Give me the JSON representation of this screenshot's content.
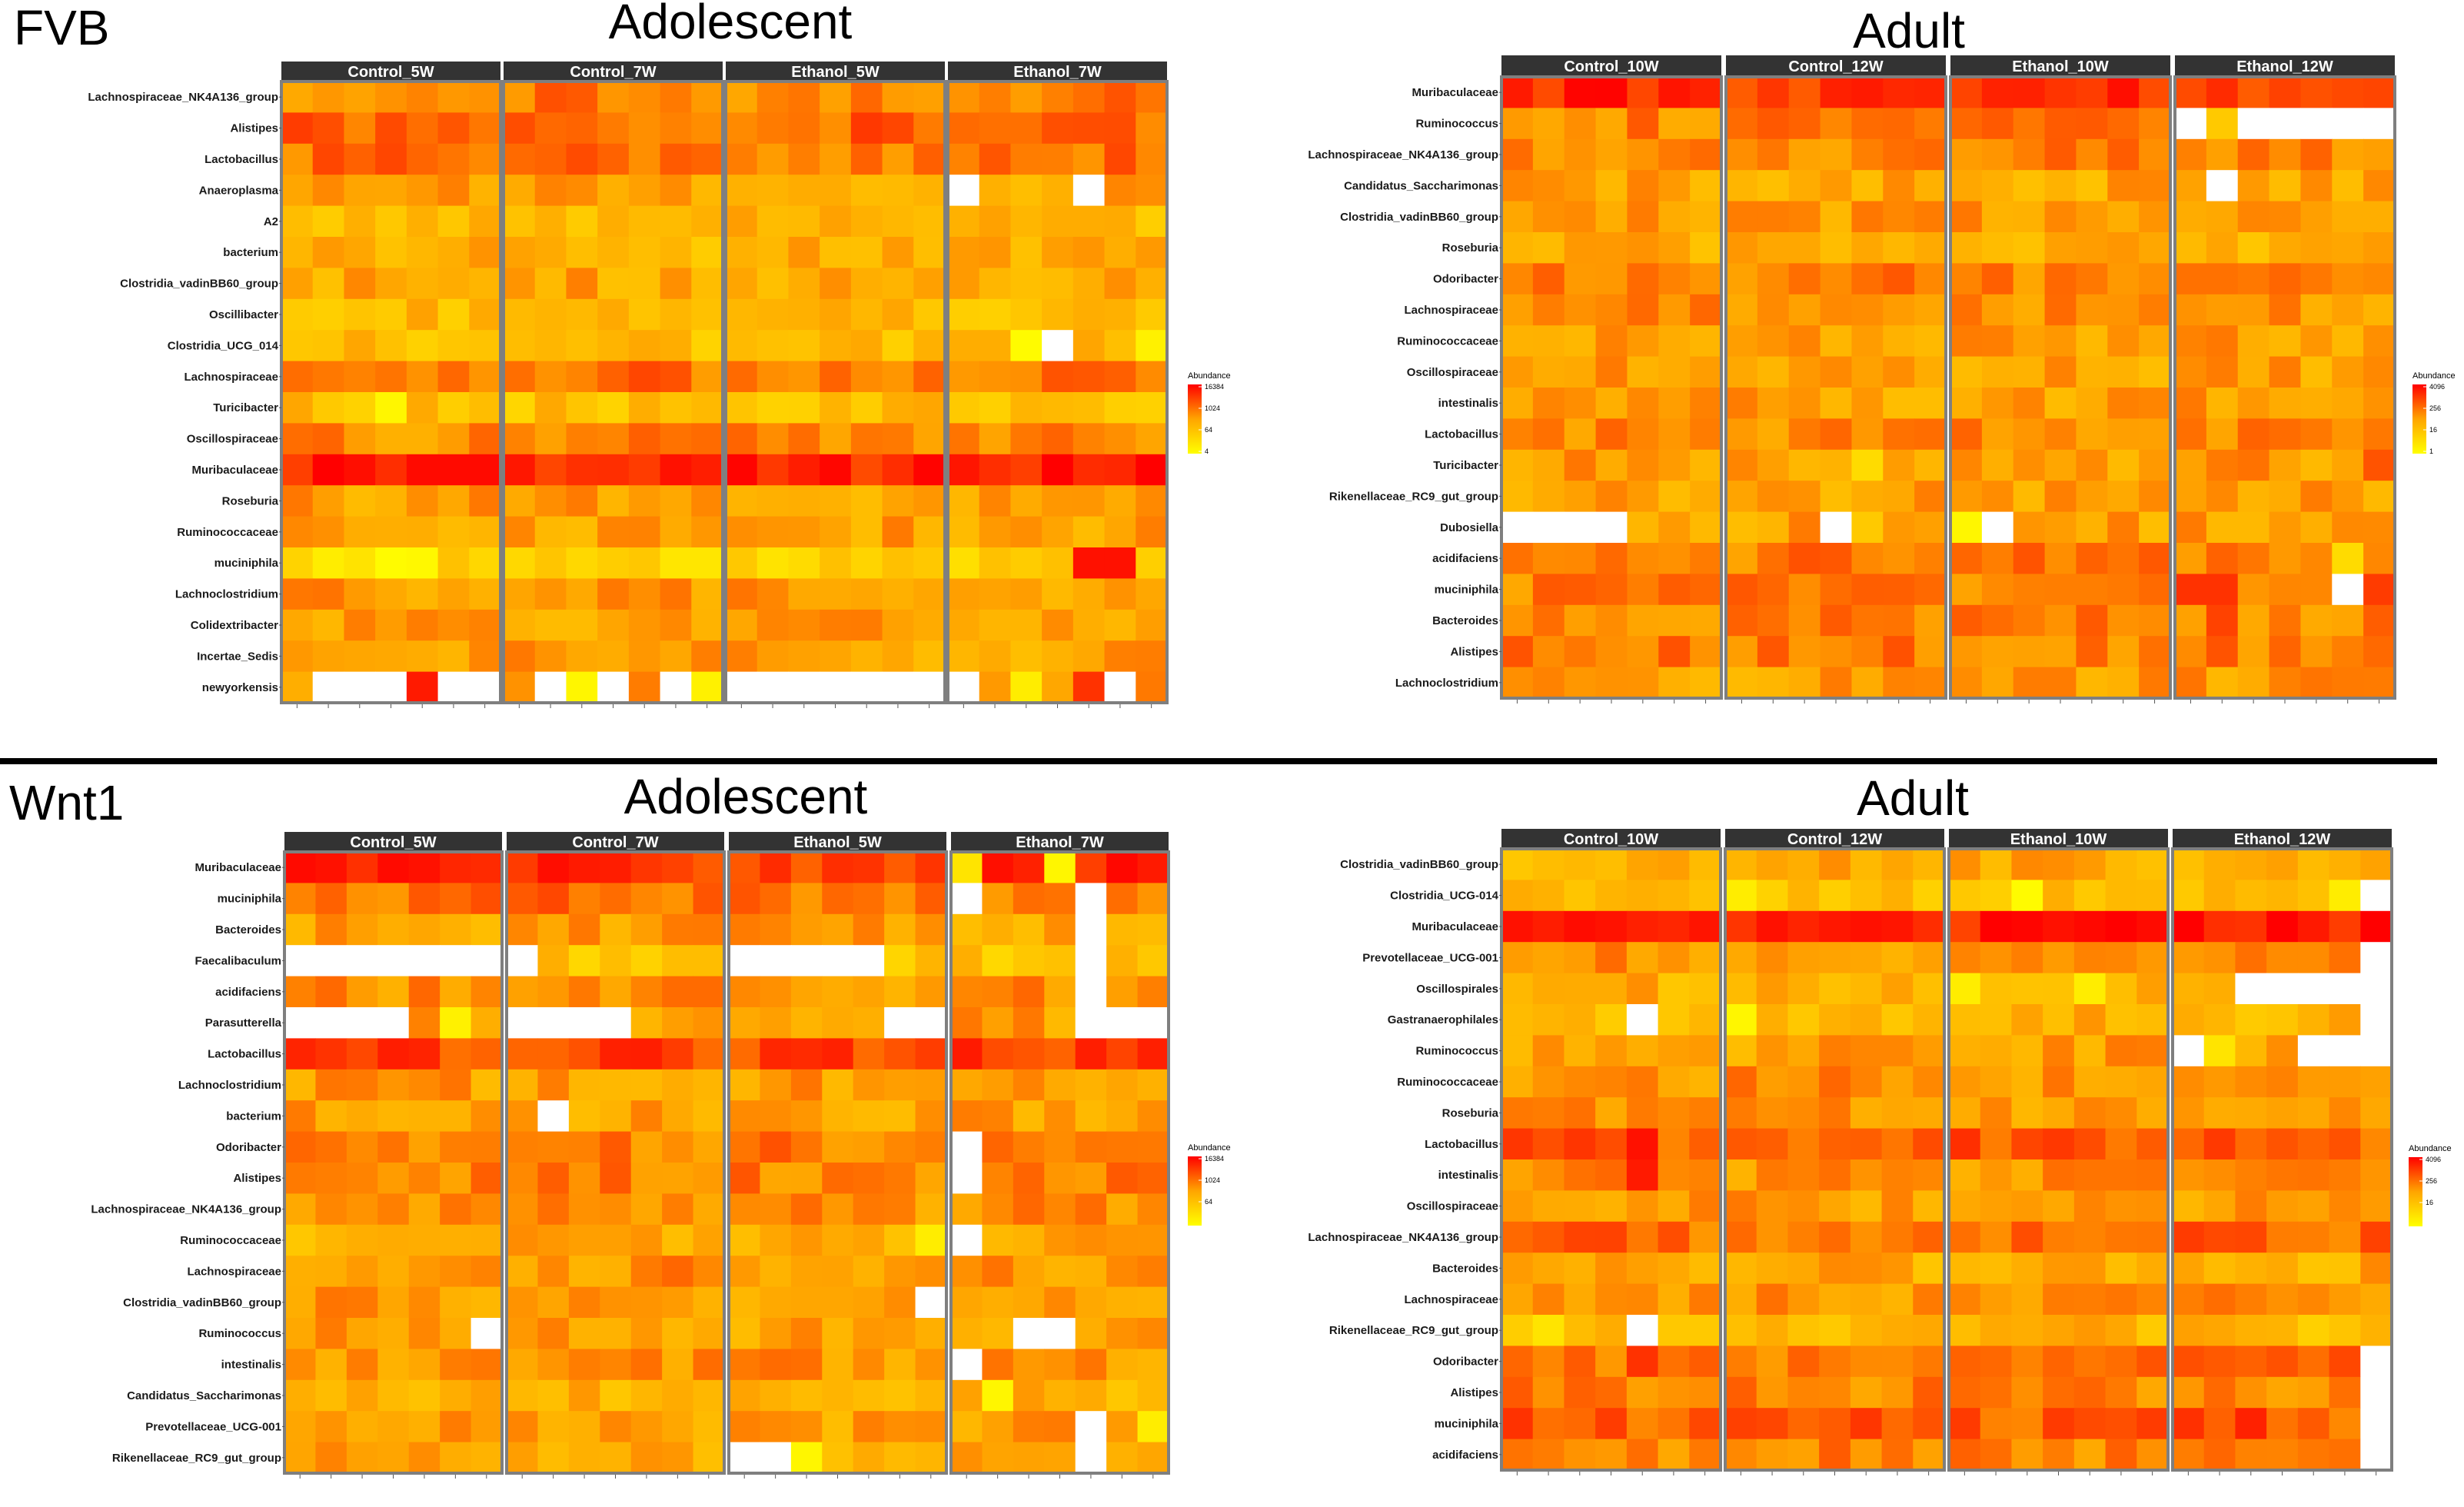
{
  "colors": {
    "low": "#ffff00",
    "mid": "#ffa500",
    "high": "#ff0000",
    "missing": "#ffffff",
    "strip": "#333333",
    "panel_border": "#7f7f7f",
    "divider": "#000000"
  },
  "chart_data": [
    {
      "type": "heatmap",
      "strain": "FVB",
      "age_title": "Adolescent",
      "groups": [
        "Control_5W",
        "Control_7W",
        "Ethanol_5W",
        "Ethanol_7W"
      ],
      "samples_per_group": 7,
      "rows": [
        "Lachnospiraceae_NK4A136_group",
        "Alistipes",
        "Lactobacillus",
        "Anaeroplasma",
        "A2",
        "bacterium",
        "Clostridia_vadinBB60_group",
        "Oscillibacter",
        "Clostridia_UCG_014",
        "Lachnospiraceae",
        "Turicibacter",
        "Oscillospiraceae",
        "Muribaculaceae",
        "Roseburia",
        "Ruminococcaceae",
        "muciniphila",
        "Lachnoclostridium",
        "Colidextribacter",
        "Incertae_Sedis",
        "newyorkensis"
      ],
      "legend": {
        "title": "Abundance",
        "ticks": [
          "16384",
          "1024",
          "64",
          "4"
        ]
      },
      "color_scale": {
        "min": 0.1,
        "max": 0.9
      },
      "missing": [
        [
          19,
          0,
          1
        ],
        [
          19,
          0,
          2
        ],
        [
          19,
          0,
          3
        ],
        [
          19,
          0,
          5
        ],
        [
          19,
          0,
          6
        ],
        [
          19,
          1,
          1
        ],
        [
          19,
          1,
          3
        ],
        [
          19,
          1,
          5
        ],
        [
          19,
          2,
          0
        ],
        [
          19,
          2,
          1
        ],
        [
          19,
          2,
          2
        ],
        [
          19,
          2,
          3
        ],
        [
          19,
          2,
          4
        ],
        [
          19,
          2,
          5
        ],
        [
          19,
          2,
          6
        ],
        [
          19,
          3,
          0
        ],
        [
          19,
          3,
          5
        ],
        [
          3,
          3,
          0
        ],
        [
          3,
          3,
          4
        ],
        [
          8,
          3,
          3
        ]
      ],
      "overrides": [
        [
          8,
          3,
          2,
          0.02
        ],
        [
          8,
          3,
          6,
          0.08
        ],
        [
          15,
          0,
          3,
          0.02
        ],
        [
          15,
          0,
          4,
          0.04
        ],
        [
          15,
          0,
          1,
          0.1
        ],
        [
          10,
          0,
          3,
          0.05
        ],
        [
          12,
          0,
          6,
          0.97
        ],
        [
          12,
          1,
          5,
          0.95
        ],
        [
          15,
          3,
          4,
          0.95
        ],
        [
          15,
          3,
          5,
          0.95
        ],
        [
          19,
          0,
          4,
          0.92
        ],
        [
          19,
          1,
          2,
          0.05
        ],
        [
          19,
          1,
          6,
          0.08
        ],
        [
          19,
          3,
          2,
          0.1
        ],
        [
          19,
          3,
          4,
          0.85
        ]
      ],
      "row_base": [
        0.62,
        0.7,
        0.66,
        0.48,
        0.4,
        0.42,
        0.48,
        0.38,
        0.36,
        0.66,
        0.36,
        0.58,
        0.9,
        0.5,
        0.5,
        0.26,
        0.52,
        0.5,
        0.5,
        0.5
      ]
    },
    {
      "type": "heatmap",
      "strain": "FVB",
      "age_title": "Adult",
      "groups": [
        "Control_10W",
        "Control_12W",
        "Ethanol_10W",
        "Ethanol_12W"
      ],
      "samples_per_group": 7,
      "rows": [
        "Muribaculaceae",
        "Ruminococcus",
        "Lachnospiraceae_NK4A136_group",
        "Candidatus_Saccharimonas",
        "Clostridia_vadinBB60_group",
        "Roseburia",
        "Odoribacter",
        "Lachnospiraceae",
        "Ruminococcaceae",
        "Oscillospiraceae",
        "intestinalis",
        "Lactobacillus",
        "Turicibacter",
        "Rikenellaceae_RC9_gut_group",
        "Dubosiella",
        "acidifaciens",
        "muciniphila",
        "Bacteroides",
        "Alistipes",
        "Lachnoclostridium"
      ],
      "legend": {
        "title": "Abundance",
        "ticks": [
          "4096",
          "256",
          "16",
          "1"
        ]
      },
      "color_scale": {
        "min": 0.1,
        "max": 0.9
      },
      "missing": [
        [
          1,
          3,
          0
        ],
        [
          1,
          3,
          2
        ],
        [
          1,
          3,
          3
        ],
        [
          1,
          3,
          4
        ],
        [
          1,
          3,
          5
        ],
        [
          1,
          3,
          6
        ],
        [
          3,
          3,
          1
        ],
        [
          14,
          0,
          0
        ],
        [
          14,
          0,
          1
        ],
        [
          14,
          0,
          2
        ],
        [
          14,
          0,
          3
        ],
        [
          14,
          1,
          3
        ],
        [
          14,
          2,
          1
        ],
        [
          16,
          3,
          5
        ]
      ],
      "overrides": [
        [
          0,
          0,
          0,
          0.92
        ],
        [
          0,
          1,
          4,
          0.92
        ],
        [
          0,
          2,
          2,
          0.9
        ],
        [
          1,
          3,
          1,
          0.3
        ],
        [
          14,
          2,
          0,
          0.05
        ],
        [
          14,
          1,
          4,
          0.3
        ],
        [
          12,
          1,
          4,
          0.2
        ],
        [
          15,
          3,
          5,
          0.2
        ],
        [
          16,
          3,
          0,
          0.85
        ],
        [
          16,
          3,
          1,
          0.85
        ],
        [
          16,
          3,
          6,
          0.82
        ],
        [
          17,
          3,
          1,
          0.8
        ],
        [
          12,
          3,
          6,
          0.75
        ]
      ],
      "row_base": [
        0.86,
        0.6,
        0.62,
        0.48,
        0.5,
        0.42,
        0.6,
        0.55,
        0.5,
        0.5,
        0.5,
        0.58,
        0.52,
        0.5,
        0.5,
        0.62,
        0.6,
        0.6,
        0.62,
        0.52
      ]
    },
    {
      "type": "heatmap",
      "strain": "Wnt1",
      "age_title": "Adolescent",
      "groups": [
        "Control_5W",
        "Control_7W",
        "Ethanol_5W",
        "Ethanol_7W"
      ],
      "samples_per_group": 7,
      "rows": [
        "Muribaculaceae",
        "muciniphila",
        "Bacteroides",
        "Faecalibaculum",
        "acidifaciens",
        "Parasutterella",
        "Lactobacillus",
        "Lachnoclostridium",
        "bacterium",
        "Odoribacter",
        "Alistipes",
        "Lachnospiraceae_NK4A136_group",
        "Ruminococcaceae",
        "Lachnospiraceae",
        "Clostridia_vadinBB60_group",
        "Ruminococcus",
        "intestinalis",
        "Candidatus_Saccharimonas",
        "Prevotellaceae_UCG-001",
        "Rikenellaceae_RC9_gut_group"
      ],
      "legend": {
        "title": "Abundance",
        "ticks": [
          "16384",
          "1024",
          "64"
        ]
      },
      "color_scale": {
        "min": 0.1,
        "max": 0.9
      },
      "missing": [
        [
          3,
          0,
          0
        ],
        [
          3,
          0,
          1
        ],
        [
          3,
          0,
          2
        ],
        [
          3,
          0,
          3
        ],
        [
          3,
          0,
          4
        ],
        [
          3,
          0,
          5
        ],
        [
          3,
          0,
          6
        ],
        [
          3,
          1,
          0
        ],
        [
          3,
          2,
          0
        ],
        [
          3,
          2,
          1
        ],
        [
          3,
          2,
          2
        ],
        [
          3,
          2,
          3
        ],
        [
          3,
          2,
          4
        ],
        [
          5,
          0,
          0
        ],
        [
          5,
          0,
          1
        ],
        [
          5,
          0,
          2
        ],
        [
          5,
          0,
          3
        ],
        [
          5,
          1,
          0
        ],
        [
          5,
          1,
          1
        ],
        [
          5,
          1,
          2
        ],
        [
          5,
          1,
          3
        ],
        [
          5,
          2,
          5
        ],
        [
          5,
          2,
          6
        ],
        [
          5,
          3,
          4
        ],
        [
          5,
          3,
          5
        ],
        [
          5,
          3,
          6
        ],
        [
          8,
          1,
          1
        ],
        [
          15,
          0,
          6
        ],
        [
          15,
          3,
          2
        ],
        [
          15,
          3,
          3
        ],
        [
          16,
          3,
          0
        ],
        [
          19,
          2,
          0
        ],
        [
          19,
          2,
          1
        ],
        [
          1,
          3,
          0
        ],
        [
          1,
          3,
          4
        ],
        [
          2,
          3,
          4
        ],
        [
          3,
          3,
          4
        ],
        [
          4,
          3,
          4
        ],
        [
          9,
          3,
          0
        ],
        [
          10,
          3,
          0
        ],
        [
          12,
          3,
          0
        ],
        [
          18,
          3,
          4
        ],
        [
          19,
          3,
          4
        ],
        [
          14,
          2,
          6
        ]
      ],
      "overrides": [
        [
          0,
          0,
          0,
          0.97
        ],
        [
          0,
          0,
          1,
          0.95
        ],
        [
          0,
          1,
          2,
          0.92
        ],
        [
          0,
          3,
          2,
          0.9
        ],
        [
          0,
          3,
          6,
          0.92
        ],
        [
          0,
          3,
          0,
          0.15
        ],
        [
          0,
          3,
          3,
          0.05
        ],
        [
          5,
          0,
          5,
          0.08
        ],
        [
          19,
          2,
          2,
          0.05
        ],
        [
          12,
          2,
          6,
          0.1
        ],
        [
          17,
          3,
          1,
          0.05
        ],
        [
          18,
          3,
          6,
          0.1
        ],
        [
          6,
          3,
          0,
          0.92
        ]
      ],
      "row_base": [
        0.84,
        0.65,
        0.5,
        0.35,
        0.55,
        0.5,
        0.8,
        0.52,
        0.5,
        0.62,
        0.62,
        0.56,
        0.45,
        0.55,
        0.52,
        0.5,
        0.55,
        0.42,
        0.5,
        0.48
      ]
    },
    {
      "type": "heatmap",
      "strain": "Wnt1",
      "age_title": "Adult",
      "groups": [
        "Control_10W",
        "Control_12W",
        "Ethanol_10W",
        "Ethanol_12W"
      ],
      "samples_per_group": 7,
      "rows": [
        "Clostridia_vadinBB60_group",
        "Clostridia_UCG-014",
        "Muribaculaceae",
        "Prevotellaceae_UCG-001",
        "Oscillospirales",
        "Gastranaerophilales",
        "Ruminococcus",
        "Ruminococcaceae",
        "Roseburia",
        "Lactobacillus",
        "intestinalis",
        "Oscillospiraceae",
        "Lachnospiraceae_NK4A136_group",
        "Bacteroides",
        "Lachnospiraceae",
        "Rikenellaceae_RC9_gut_group",
        "Odoribacter",
        "Alistipes",
        "muciniphila",
        "acidifaciens"
      ],
      "legend": {
        "title": "Abundance",
        "ticks": [
          "4096",
          "256",
          "16"
        ]
      },
      "color_scale": {
        "min": 0.1,
        "max": 0.9
      },
      "missing": [
        [
          1,
          3,
          6
        ],
        [
          3,
          3,
          6
        ],
        [
          4,
          3,
          2
        ],
        [
          4,
          3,
          3
        ],
        [
          4,
          3,
          4
        ],
        [
          4,
          3,
          5
        ],
        [
          4,
          3,
          6
        ],
        [
          5,
          0,
          4
        ],
        [
          5,
          3,
          6
        ],
        [
          6,
          3,
          0
        ],
        [
          6,
          3,
          4
        ],
        [
          6,
          3,
          5
        ],
        [
          6,
          3,
          6
        ],
        [
          15,
          0,
          4
        ],
        [
          16,
          3,
          6
        ],
        [
          17,
          3,
          6
        ],
        [
          18,
          3,
          6
        ],
        [
          19,
          3,
          6
        ]
      ],
      "overrides": [
        [
          1,
          2,
          2,
          0.02
        ],
        [
          1,
          1,
          0,
          0.1
        ],
        [
          1,
          3,
          5,
          0.1
        ],
        [
          2,
          0,
          0,
          0.95
        ],
        [
          2,
          1,
          1,
          0.95
        ],
        [
          2,
          2,
          3,
          0.95
        ],
        [
          4,
          2,
          0,
          0.1
        ],
        [
          4,
          2,
          4,
          0.1
        ],
        [
          5,
          1,
          0,
          0.05
        ],
        [
          6,
          3,
          1,
          0.15
        ],
        [
          9,
          0,
          4,
          0.95
        ],
        [
          10,
          0,
          4,
          0.92
        ],
        [
          15,
          0,
          1,
          0.15
        ],
        [
          16,
          0,
          4,
          0.85
        ],
        [
          18,
          0,
          0,
          0.85
        ],
        [
          18,
          3,
          2,
          0.9
        ]
      ],
      "row_base": [
        0.45,
        0.38,
        0.92,
        0.55,
        0.45,
        0.42,
        0.5,
        0.55,
        0.52,
        0.72,
        0.55,
        0.52,
        0.68,
        0.45,
        0.55,
        0.4,
        0.65,
        0.62,
        0.72,
        0.6
      ]
    }
  ]
}
